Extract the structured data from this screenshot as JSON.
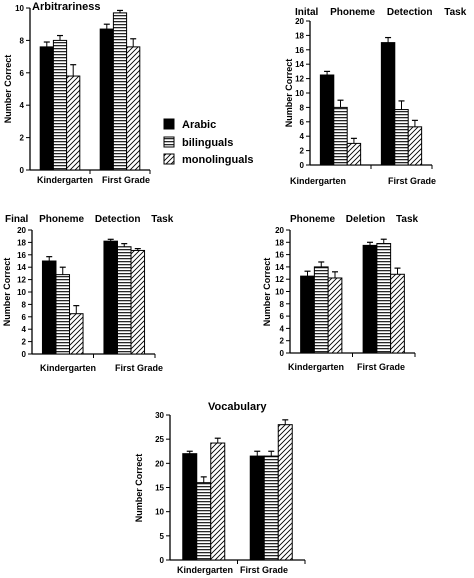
{
  "legend": {
    "position": "center-right",
    "items": [
      {
        "label": "Arabic",
        "pattern": "solid"
      },
      {
        "label": "bilinguals",
        "pattern": "horizontal"
      },
      {
        "label": "monolinguals",
        "pattern": "diagonal"
      }
    ]
  },
  "chart_data": [
    {
      "type": "bar",
      "title": "Arbitrariness",
      "ylabel": "Number Correct",
      "ylim": [
        0,
        10
      ],
      "yticks": [
        0,
        2,
        4,
        6,
        8,
        10
      ],
      "categories": [
        "Kindergarten",
        "First Grade"
      ],
      "series": [
        {
          "name": "Arabic",
          "values": [
            7.6,
            8.7
          ],
          "errors": [
            0.3,
            0.3
          ]
        },
        {
          "name": "bilinguals",
          "values": [
            8.0,
            9.7
          ],
          "errors": [
            0.3,
            0.15
          ]
        },
        {
          "name": "monolinguals",
          "values": [
            5.8,
            7.6
          ],
          "errors": [
            0.7,
            0.5
          ]
        }
      ],
      "grid": false
    },
    {
      "type": "bar",
      "title": "Inital Phoneme Detection Task",
      "ylabel": "Number Correct",
      "ylim": [
        0,
        20
      ],
      "yticks": [
        0,
        2,
        4,
        6,
        8,
        10,
        12,
        14,
        16,
        18,
        20
      ],
      "categories": [
        "Kindergarten",
        "First Grade"
      ],
      "series": [
        {
          "name": "Arabic",
          "values": [
            12.5,
            17.0
          ],
          "errors": [
            0.5,
            0.7
          ]
        },
        {
          "name": "bilinguals",
          "values": [
            8.0,
            7.7
          ],
          "errors": [
            1.0,
            1.2
          ]
        },
        {
          "name": "monolinguals",
          "values": [
            3.0,
            5.3
          ],
          "errors": [
            0.7,
            0.9
          ]
        }
      ],
      "grid": false
    },
    {
      "type": "bar",
      "title": "Final Phoneme Detection Task",
      "ylabel": "Number Correct",
      "ylim": [
        0,
        20
      ],
      "yticks": [
        0,
        2,
        4,
        6,
        8,
        10,
        12,
        14,
        16,
        18,
        20
      ],
      "categories": [
        "Kindergarten",
        "First Grade"
      ],
      "series": [
        {
          "name": "Arabic",
          "values": [
            15.0,
            18.2
          ],
          "errors": [
            0.7,
            0.3
          ]
        },
        {
          "name": "bilinguals",
          "values": [
            12.8,
            17.3
          ],
          "errors": [
            1.2,
            0.5
          ]
        },
        {
          "name": "monolinguals",
          "values": [
            6.5,
            16.7
          ],
          "errors": [
            1.3,
            0.3
          ]
        }
      ],
      "grid": false
    },
    {
      "type": "bar",
      "title": "Phoneme Deletion Task",
      "ylabel": "Number Correct",
      "ylim": [
        0,
        20
      ],
      "yticks": [
        0,
        2,
        4,
        6,
        8,
        10,
        12,
        14,
        16,
        18,
        20
      ],
      "categories": [
        "Kindergarten",
        "First Grade"
      ],
      "series": [
        {
          "name": "Arabic",
          "values": [
            12.5,
            17.5
          ],
          "errors": [
            0.8,
            0.5
          ]
        },
        {
          "name": "bilinguals",
          "values": [
            14.0,
            17.8
          ],
          "errors": [
            0.8,
            0.7
          ]
        },
        {
          "name": "monolinguals",
          "values": [
            12.2,
            12.8
          ],
          "errors": [
            1.0,
            1.0
          ]
        }
      ],
      "grid": false
    },
    {
      "type": "bar",
      "title": "Vocabulary",
      "ylabel": "Number Correct",
      "ylim": [
        0,
        30
      ],
      "yticks": [
        0,
        5,
        10,
        15,
        20,
        25,
        30
      ],
      "categories": [
        "Kindergarten",
        "First Grade"
      ],
      "series": [
        {
          "name": "Arabic",
          "values": [
            22.0,
            21.5
          ],
          "errors": [
            0.5,
            1.0
          ]
        },
        {
          "name": "bilinguals",
          "values": [
            16.0,
            21.5
          ],
          "errors": [
            1.2,
            1.0
          ]
        },
        {
          "name": "monolinguals",
          "values": [
            24.2,
            28.0
          ],
          "errors": [
            1.0,
            1.0
          ]
        }
      ],
      "grid": false
    }
  ]
}
